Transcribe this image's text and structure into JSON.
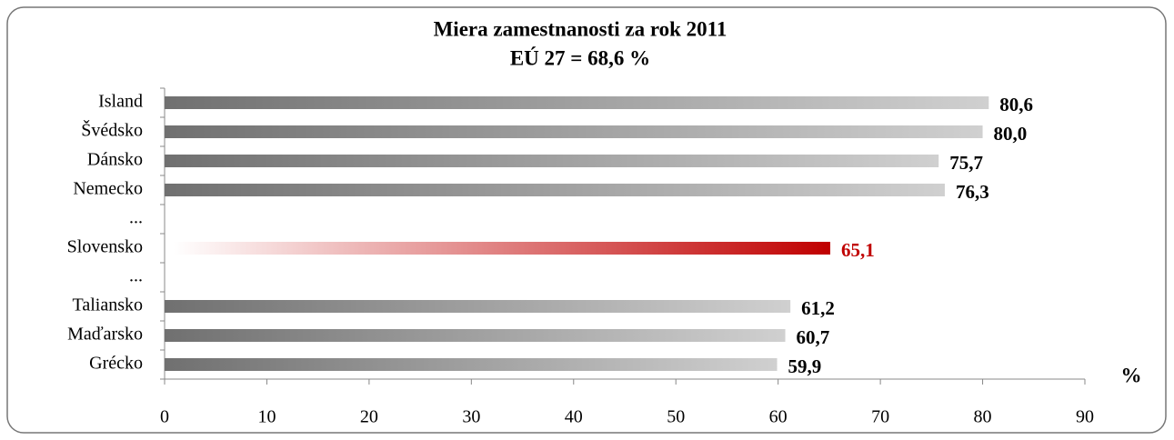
{
  "chart_data": {
    "type": "bar",
    "orientation": "horizontal",
    "title": "Miera zamestnanosti za rok 2011",
    "subtitle": "EÚ 27 =  68,6 %",
    "x_label": "%",
    "categories": [
      "Island",
      "Švédsko",
      "Dánsko",
      "Nemecko",
      "...",
      "Slovensko",
      "...",
      "Taliansko",
      "Maďarsko",
      "Grécko"
    ],
    "values": [
      80.6,
      80.0,
      75.7,
      76.3,
      null,
      65.1,
      null,
      61.2,
      60.7,
      59.9
    ],
    "value_labels": [
      "80,6",
      "80,0",
      "75,7",
      "76,3",
      null,
      "65,1",
      null,
      "61,2",
      "60,7",
      "59,9"
    ],
    "color": "#707070",
    "highlight": "Slovensko",
    "highlight_color": "#c00000",
    "xlim": [
      0,
      90
    ],
    "xticks": [
      0,
      10,
      20,
      30,
      40,
      50,
      60,
      70,
      80,
      90
    ],
    "grid": false
  }
}
